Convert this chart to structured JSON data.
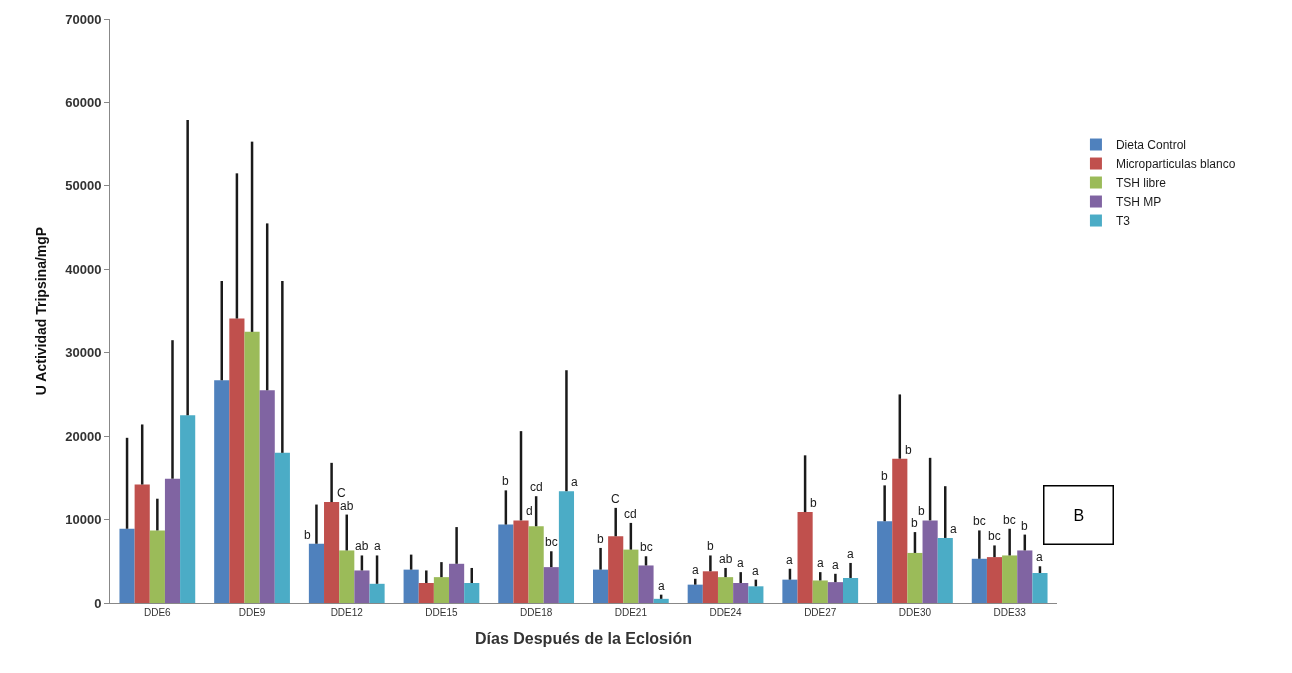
{
  "chart_data": {
    "type": "bar",
    "xlabel": "Días Después de la Eclosión",
    "ylabel": "U Actividad Tripsina/mgP",
    "categories": [
      "DDE6",
      "DDE9",
      "DDE12",
      "DDE15",
      "DDE18",
      "DDE21",
      "DDE24",
      "DDE27",
      "DDE30",
      "DDE33"
    ],
    "ylim": [
      0,
      70000
    ],
    "yticks": [
      0,
      10000,
      20000,
      30000,
      40000,
      50000,
      60000,
      70000
    ],
    "grid": false,
    "legend": "right",
    "annotations": [
      "B"
    ],
    "series": [
      {
        "name": "Dieta Control",
        "color": "#4f81bd",
        "values": [
          8900,
          26700,
          7100,
          4000,
          9400,
          4000,
          2200,
          2800,
          9800,
          5300
        ],
        "errors": [
          [
            8900,
            19800
          ],
          [
            26700,
            38600
          ],
          [
            7100,
            11800
          ],
          [
            4000,
            5800
          ],
          [
            9400,
            13500
          ],
          [
            4000,
            6600
          ],
          [
            2200,
            2900
          ],
          [
            2800,
            4100
          ],
          [
            9800,
            14100
          ],
          [
            5300,
            8700
          ]
        ],
        "value_labels": [
          null,
          null,
          "b",
          null,
          "b",
          "b",
          "a",
          "a",
          "b",
          "bc"
        ]
      },
      {
        "name": "Microparticulas blanco",
        "color": "#c0504d",
        "values": [
          14200,
          34100,
          12100,
          2400,
          9900,
          8000,
          3800,
          10900,
          17300,
          5500
        ],
        "errors": [
          [
            14200,
            21400
          ],
          [
            34100,
            51500
          ],
          [
            12100,
            16800
          ],
          [
            2400,
            3900
          ],
          [
            9900,
            20600
          ],
          [
            8000,
            11400
          ],
          [
            3800,
            5700
          ],
          [
            10900,
            17700
          ],
          [
            17300,
            25000
          ],
          [
            5500,
            6900
          ]
        ],
        "value_labels": [
          null,
          null,
          "C",
          null,
          "d",
          "C",
          "b",
          "b",
          "b",
          "bc"
        ]
      },
      {
        "name": "TSH libre",
        "color": "#9bbb59",
        "values": [
          8700,
          32500,
          6300,
          3100,
          9200,
          6400,
          3100,
          2700,
          6000,
          5700
        ],
        "errors": [
          [
            8700,
            12500
          ],
          [
            32500,
            55300
          ],
          [
            6300,
            10600
          ],
          [
            3100,
            4900
          ],
          [
            9200,
            12800
          ],
          [
            6400,
            9600
          ],
          [
            3100,
            4200
          ],
          [
            2700,
            3700
          ],
          [
            6000,
            8500
          ],
          [
            5700,
            8900
          ]
        ],
        "value_labels": [
          null,
          null,
          "ab",
          null,
          "cd",
          "cd",
          "ab",
          "a",
          "b",
          "bc"
        ]
      },
      {
        "name": "TSH MP",
        "color": "#8064a2",
        "values": [
          14900,
          25500,
          3900,
          4700,
          4300,
          4500,
          2400,
          2500,
          9900,
          6300
        ],
        "errors": [
          [
            14900,
            31500
          ],
          [
            25500,
            45500
          ],
          [
            3900,
            5700
          ],
          [
            4700,
            9100
          ],
          [
            4300,
            6200
          ],
          [
            4500,
            5600
          ],
          [
            2400,
            3700
          ],
          [
            2500,
            3500
          ],
          [
            9900,
            17400
          ],
          [
            6300,
            8200
          ]
        ],
        "value_labels": [
          null,
          null,
          "ab",
          null,
          "bc",
          "bc",
          "a",
          "a",
          "b",
          "b"
        ]
      },
      {
        "name": "T3",
        "color": "#4bacc6",
        "values": [
          22500,
          18000,
          2300,
          2400,
          13400,
          500,
          2000,
          3000,
          7800,
          3600
        ],
        "errors": [
          [
            22500,
            57900
          ],
          [
            18000,
            38600
          ],
          [
            2300,
            5700
          ],
          [
            2400,
            4200
          ],
          [
            13400,
            27900
          ],
          [
            500,
            1000
          ],
          [
            2000,
            2800
          ],
          [
            3000,
            4800
          ],
          [
            7800,
            14000
          ],
          [
            3600,
            4400
          ]
        ],
        "value_labels": [
          null,
          null,
          "a",
          null,
          "a",
          "a",
          "a",
          "a",
          "a",
          "a"
        ]
      }
    ]
  }
}
